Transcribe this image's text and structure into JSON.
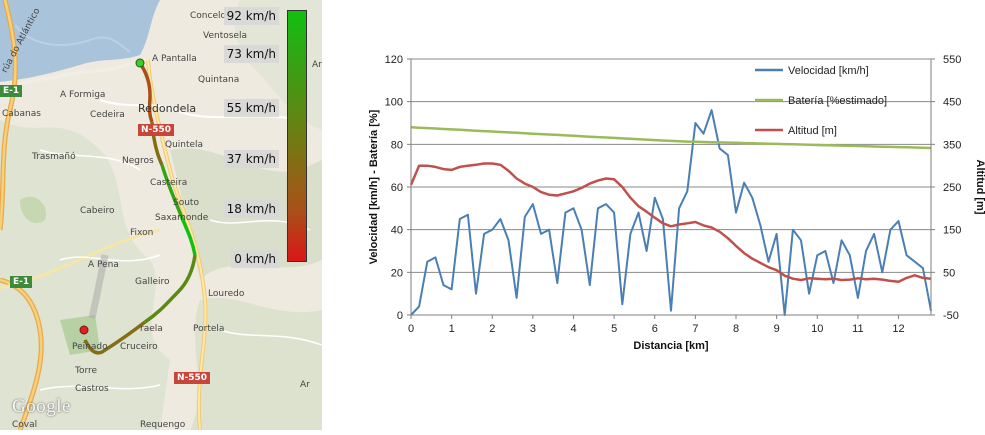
{
  "map": {
    "places": [
      {
        "id": "concelo",
        "text": "Concelo"
      },
      {
        "id": "ventosela",
        "text": "Ventosela"
      },
      {
        "id": "a-pantalla",
        "text": "A Pantalla"
      },
      {
        "id": "quintana",
        "text": "Quintana"
      },
      {
        "id": "a-formiga",
        "text": "A Formiga"
      },
      {
        "id": "redondela",
        "text": "Redondela"
      },
      {
        "id": "cabanas",
        "text": "Cabanas"
      },
      {
        "id": "cedeira",
        "text": "Cedeira"
      },
      {
        "id": "quintela",
        "text": "Quintela"
      },
      {
        "id": "trasmano",
        "text": "Trasmañó"
      },
      {
        "id": "negros",
        "text": "Negros"
      },
      {
        "id": "casteira",
        "text": "Casteira"
      },
      {
        "id": "souto",
        "text": "Souto"
      },
      {
        "id": "saxamonde",
        "text": "Saxamonde"
      },
      {
        "id": "cabeiro",
        "text": "Cabeiro"
      },
      {
        "id": "fixon",
        "text": "Fixon"
      },
      {
        "id": "a-pena",
        "text": "A Pena"
      },
      {
        "id": "galleiro",
        "text": "Galleiro"
      },
      {
        "id": "louredo",
        "text": "Louredo"
      },
      {
        "id": "portela",
        "text": "Portela"
      },
      {
        "id": "raela",
        "text": "raela"
      },
      {
        "id": "cruceiro",
        "text": "Cruceiro"
      },
      {
        "id": "peinado",
        "text": "Peinado"
      },
      {
        "id": "torre",
        "text": "Torre"
      },
      {
        "id": "castros",
        "text": "Castros"
      },
      {
        "id": "requengo",
        "text": "Requengo"
      },
      {
        "id": "coval",
        "text": "Coval"
      },
      {
        "id": "ar",
        "text": "Ar"
      },
      {
        "id": "ar2",
        "text": "Ar"
      },
      {
        "id": "rua-atlantico",
        "text": "rúa do Atlántico"
      }
    ],
    "roads": [
      {
        "id": "e1-top",
        "text": "E-1",
        "color": "green"
      },
      {
        "id": "n550-top",
        "text": "N-550",
        "color": "red"
      },
      {
        "id": "e1-bottom",
        "text": "E-1",
        "color": "green"
      },
      {
        "id": "n550-bottom",
        "text": "N-550",
        "color": "red"
      }
    ],
    "speed_legend": {
      "labels": [
        "92 km/h",
        "73 km/h",
        "55 km/h",
        "37 km/h",
        "18 km/h",
        "0 km/h"
      ],
      "colors": [
        "#10c010",
        "#35a314",
        "#5a8a14",
        "#836e14",
        "#a9501a",
        "#d91717"
      ]
    },
    "provider": "Google"
  },
  "chart_data": {
    "type": "line",
    "x": [
      0,
      0.2,
      0.4,
      0.6,
      0.8,
      1.0,
      1.2,
      1.4,
      1.6,
      1.8,
      2.0,
      2.2,
      2.4,
      2.6,
      2.8,
      3.0,
      3.2,
      3.4,
      3.6,
      3.8,
      4.0,
      4.2,
      4.4,
      4.6,
      4.8,
      5.0,
      5.2,
      5.4,
      5.6,
      5.8,
      6.0,
      6.2,
      6.4,
      6.6,
      6.8,
      7.0,
      7.2,
      7.4,
      7.6,
      7.8,
      8.0,
      8.2,
      8.4,
      8.6,
      8.8,
      9.0,
      9.2,
      9.4,
      9.6,
      9.8,
      10.0,
      10.2,
      10.4,
      10.6,
      10.8,
      11.0,
      11.2,
      11.4,
      11.6,
      11.8,
      12.0,
      12.2,
      12.4,
      12.6,
      12.8
    ],
    "xlim": [
      0,
      12.8
    ],
    "xticks": [
      0,
      1,
      2,
      3,
      4,
      5,
      6,
      7,
      8,
      9,
      10,
      11,
      12
    ],
    "xlabel": "Distancia  [km]",
    "ylabel_left": "Velocidad  [km/h] - Batería  [%]",
    "ylim_left": [
      0,
      120
    ],
    "yticks_left": [
      0,
      20,
      40,
      60,
      80,
      100,
      120
    ],
    "ylabel_right": "Altitud  [m]",
    "ylim_right": [
      -50,
      550
    ],
    "yticks_right": [
      -50,
      50,
      150,
      250,
      350,
      450,
      550
    ],
    "grid": true,
    "legend_position": "top-right",
    "series": [
      {
        "name": "Velocidad [km/h]",
        "axis": "left",
        "color": "#4a7fb5",
        "values": [
          0,
          4,
          25,
          27,
          14,
          12,
          45,
          47,
          10,
          38,
          40,
          45,
          35,
          8,
          46,
          52,
          38,
          40,
          15,
          48,
          50,
          40,
          14,
          50,
          52,
          48,
          5,
          38,
          48,
          30,
          55,
          45,
          2,
          50,
          58,
          90,
          85,
          96,
          78,
          75,
          48,
          62,
          55,
          42,
          25,
          38,
          0,
          40,
          35,
          10,
          28,
          30,
          15,
          35,
          28,
          8,
          30,
          38,
          20,
          40,
          44,
          28,
          25,
          22,
          2
        ]
      },
      {
        "name": "Batería [%estimado]",
        "axis": "left",
        "color": "#9bbb59",
        "values": [
          88,
          87.8,
          87.6,
          87.4,
          87.2,
          87.0,
          86.8,
          86.6,
          86.4,
          86.2,
          86.0,
          85.8,
          85.6,
          85.4,
          85.2,
          85.0,
          84.8,
          84.6,
          84.4,
          84.2,
          84.0,
          83.8,
          83.6,
          83.4,
          83.2,
          83.0,
          82.8,
          82.6,
          82.4,
          82.2,
          82.0,
          81.8,
          81.6,
          81.4,
          81.3,
          81.2,
          81.1,
          81.0,
          80.9,
          80.8,
          80.7,
          80.6,
          80.5,
          80.4,
          80.3,
          80.2,
          80.1,
          80.0,
          79.9,
          79.8,
          79.7,
          79.6,
          79.5,
          79.4,
          79.3,
          79.2,
          79.1,
          79.0,
          78.9,
          78.8,
          78.7,
          78.6,
          78.5,
          78.4,
          78.3
        ]
      },
      {
        "name": "Altitud [m]",
        "axis": "right",
        "color": "#c0504d",
        "values": [
          255,
          300,
          300,
          297,
          292,
          290,
          297,
          300,
          302,
          305,
          305,
          302,
          288,
          270,
          258,
          250,
          238,
          232,
          230,
          235,
          240,
          248,
          258,
          265,
          270,
          268,
          250,
          225,
          205,
          192,
          178,
          165,
          158,
          162,
          165,
          168,
          160,
          155,
          145,
          130,
          112,
          95,
          82,
          72,
          62,
          55,
          42,
          35,
          32,
          36,
          35,
          34,
          35,
          32,
          33,
          36,
          34,
          35,
          33,
          30,
          28,
          37,
          43,
          37,
          35
        ]
      }
    ]
  }
}
